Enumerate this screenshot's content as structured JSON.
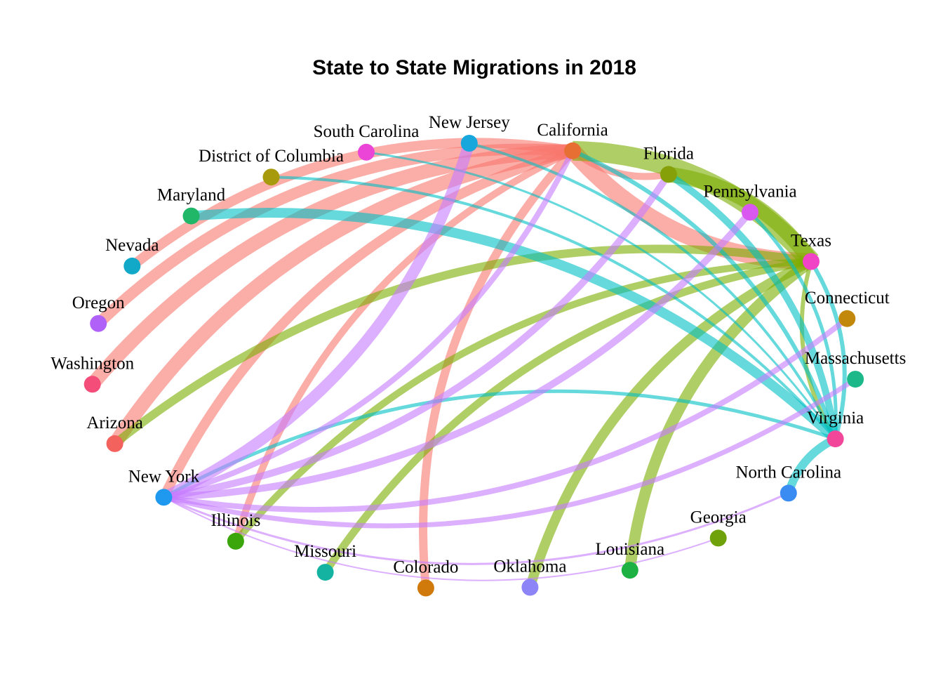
{
  "title": "State to State Migrations in 2018",
  "nodes": [
    {
      "id": "california",
      "label": "California",
      "color": "#E76F33"
    },
    {
      "id": "florida",
      "label": "Florida",
      "color": "#86A00A"
    },
    {
      "id": "pennsylvania",
      "label": "Pennsylvania",
      "color": "#D959F0"
    },
    {
      "id": "texas",
      "label": "Texas",
      "color": "#F143C6"
    },
    {
      "id": "connecticut",
      "label": "Connecticut",
      "color": "#C2880B"
    },
    {
      "id": "massachusetts",
      "label": "Massachusetts",
      "color": "#1CB88A"
    },
    {
      "id": "virginia",
      "label": "Virginia",
      "color": "#F2469A"
    },
    {
      "id": "north-carolina",
      "label": "North Carolina",
      "color": "#3A8CF2"
    },
    {
      "id": "georgia",
      "label": "Georgia",
      "color": "#6FA20A"
    },
    {
      "id": "louisiana",
      "label": "Louisiana",
      "color": "#1DB043"
    },
    {
      "id": "oklahoma",
      "label": "Oklahoma",
      "color": "#8D84F7"
    },
    {
      "id": "colorado",
      "label": "Colorado",
      "color": "#D07A0B"
    },
    {
      "id": "missouri",
      "label": "Missouri",
      "color": "#14B3A1"
    },
    {
      "id": "illinois",
      "label": "Illinois",
      "color": "#3BA60C"
    },
    {
      "id": "new-york",
      "label": "New York",
      "color": "#1F98F0"
    },
    {
      "id": "arizona",
      "label": "Arizona",
      "color": "#F4625E"
    },
    {
      "id": "washington",
      "label": "Washington",
      "color": "#F44D7A"
    },
    {
      "id": "oregon",
      "label": "Oregon",
      "color": "#B062F8"
    },
    {
      "id": "nevada",
      "label": "Nevada",
      "color": "#12A9C9"
    },
    {
      "id": "maryland",
      "label": "Maryland",
      "color": "#20B868"
    },
    {
      "id": "district-of-columbia",
      "label": "District of Columbia",
      "color": "#A89A0D"
    },
    {
      "id": "south-carolina",
      "label": "South Carolina",
      "color": "#EB45D8"
    },
    {
      "id": "new-jersey",
      "label": "New Jersey",
      "color": "#18A7DD"
    }
  ],
  "edge_colors": {
    "california": "#F8766D",
    "texas": "#7CAE00",
    "virginia": "#00BFC4",
    "new-york": "#C77CFF"
  },
  "edges": [
    {
      "from": "california",
      "to": "nevada",
      "weight": 14
    },
    {
      "from": "california",
      "to": "oregon",
      "weight": 16
    },
    {
      "from": "california",
      "to": "washington",
      "weight": 20
    },
    {
      "from": "california",
      "to": "arizona",
      "weight": 20
    },
    {
      "from": "california",
      "to": "texas",
      "weight": 24
    },
    {
      "from": "california",
      "to": "florida",
      "weight": 10
    },
    {
      "from": "california",
      "to": "colorado",
      "weight": 12
    },
    {
      "from": "california",
      "to": "illinois",
      "weight": 10
    },
    {
      "from": "california",
      "to": "new-york",
      "weight": 14
    },
    {
      "from": "texas",
      "to": "california",
      "weight": 28
    },
    {
      "from": "texas",
      "to": "florida",
      "weight": 22
    },
    {
      "from": "texas",
      "to": "arizona",
      "weight": 12
    },
    {
      "from": "texas",
      "to": "missouri",
      "weight": 11
    },
    {
      "from": "texas",
      "to": "oklahoma",
      "weight": 14
    },
    {
      "from": "texas",
      "to": "louisiana",
      "weight": 16
    },
    {
      "from": "texas",
      "to": "illinois",
      "weight": 10
    },
    {
      "from": "texas",
      "to": "virginia",
      "weight": 6
    },
    {
      "from": "virginia",
      "to": "maryland",
      "weight": 14
    },
    {
      "from": "virginia",
      "to": "district-of-columbia",
      "weight": 4
    },
    {
      "from": "virginia",
      "to": "south-carolina",
      "weight": 3
    },
    {
      "from": "virginia",
      "to": "new-jersey",
      "weight": 4
    },
    {
      "from": "virginia",
      "to": "california",
      "weight": 6
    },
    {
      "from": "virginia",
      "to": "florida",
      "weight": 10
    },
    {
      "from": "virginia",
      "to": "pennsylvania",
      "weight": 5
    },
    {
      "from": "virginia",
      "to": "texas",
      "weight": 6
    },
    {
      "from": "virginia",
      "to": "north-carolina",
      "weight": 12
    },
    {
      "from": "virginia",
      "to": "new-york",
      "weight": 5
    },
    {
      "from": "new-york",
      "to": "new-jersey",
      "weight": 16
    },
    {
      "from": "new-york",
      "to": "florida",
      "weight": 10
    },
    {
      "from": "new-york",
      "to": "pennsylvania",
      "weight": 10
    },
    {
      "from": "new-york",
      "to": "connecticut",
      "weight": 8
    },
    {
      "from": "new-york",
      "to": "massachusetts",
      "weight": 7
    },
    {
      "from": "new-york",
      "to": "north-carolina",
      "weight": 3
    },
    {
      "from": "new-york",
      "to": "georgia",
      "weight": 2
    },
    {
      "from": "new-york",
      "to": "california",
      "weight": 8
    }
  ]
}
